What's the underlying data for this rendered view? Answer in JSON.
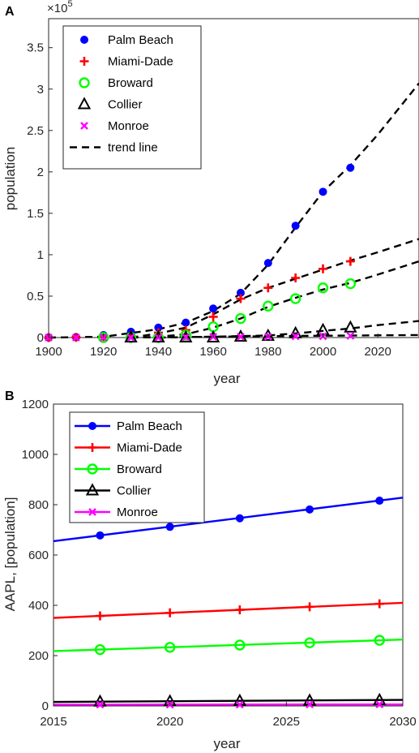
{
  "chart_data": [
    {
      "panel_label": "A",
      "type": "scatter",
      "xlabel": "year",
      "ylabel": "population",
      "y_multiplier": "×10",
      "y_multiplier_exp": "5",
      "xlim": [
        1900,
        2035
      ],
      "ylim": [
        0,
        3.85
      ],
      "xticks": [
        1900,
        1920,
        1940,
        1960,
        1980,
        2000,
        2020
      ],
      "yticks": [
        0,
        0.5,
        1,
        1.5,
        2,
        2.5,
        3,
        3.5
      ],
      "ytick_labels": [
        "0",
        "0.5",
        "1",
        "1.5",
        "2",
        "2.5",
        "3",
        "3.5"
      ],
      "legend_position": "top-left",
      "legend": [
        "Palm Beach",
        "Miami-Dade",
        "Broward",
        "Collier",
        "Monroe",
        "trend line"
      ],
      "series": [
        {
          "name": "Palm Beach",
          "color": "#0000ff",
          "marker": "dot",
          "x": [
            1900,
            1910,
            1920,
            1930,
            1940,
            1950,
            1960,
            1970,
            1980,
            1990,
            2000,
            2010
          ],
          "y": [
            0,
            0.005,
            0.03,
            0.07,
            0.12,
            0.18,
            0.35,
            0.54,
            0.9,
            1.35,
            1.76,
            2.05
          ]
        },
        {
          "name": "Miami-Dade",
          "color": "#ff0000",
          "marker": "plus",
          "x": [
            1900,
            1910,
            1920,
            1930,
            1940,
            1950,
            1960,
            1970,
            1980,
            1990,
            2000,
            2010
          ],
          "y": [
            0,
            0.003,
            0.01,
            0.03,
            0.06,
            0.09,
            0.25,
            0.47,
            0.6,
            0.72,
            0.83,
            0.92
          ]
        },
        {
          "name": "Broward",
          "color": "#00ff00",
          "marker": "circle",
          "x": [
            1920,
            1930,
            1940,
            1950,
            1960,
            1970,
            1980,
            1990,
            2000,
            2010
          ],
          "y": [
            0.0,
            0.0,
            0.0,
            0.03,
            0.13,
            0.23,
            0.38,
            0.47,
            0.6,
            0.65
          ]
        },
        {
          "name": "Collier",
          "color": "#000000",
          "marker": "triangle",
          "x": [
            1930,
            1940,
            1950,
            1960,
            1970,
            1980,
            1990,
            2000,
            2010
          ],
          "y": [
            0.0,
            0.0,
            0.0,
            0.0,
            0.01,
            0.02,
            0.05,
            0.09,
            0.12
          ]
        },
        {
          "name": "Monroe",
          "color": "#ff00ff",
          "marker": "x",
          "x": [
            1900,
            1910,
            1920,
            1930,
            1940,
            1950,
            1960,
            1970,
            1980,
            1990,
            2000,
            2010
          ],
          "y": [
            0,
            0,
            0,
            0,
            0,
            0.005,
            0.01,
            0.01,
            0.01,
            0.015,
            0.015,
            0.02
          ]
        }
      ],
      "trend_lines": [
        {
          "name": "Palm Beach",
          "x": [
            1900,
            1920,
            1940,
            1950,
            1960,
            1970,
            1980,
            1990,
            2000,
            2010,
            2020,
            2035
          ],
          "y": [
            0,
            0.01,
            0.1,
            0.18,
            0.32,
            0.53,
            0.88,
            1.33,
            1.76,
            2.08,
            2.45,
            3.07
          ]
        },
        {
          "name": "Miami-Dade",
          "x": [
            1930,
            1940,
            1950,
            1960,
            1970,
            1980,
            1990,
            2000,
            2010,
            2020,
            2035
          ],
          "y": [
            0,
            0.05,
            0.12,
            0.28,
            0.46,
            0.6,
            0.71,
            0.82,
            0.93,
            1.03,
            1.19
          ]
        },
        {
          "name": "Broward",
          "x": [
            1930,
            1940,
            1950,
            1960,
            1970,
            1980,
            1990,
            2000,
            2010,
            2020,
            2035
          ],
          "y": [
            0,
            0.01,
            0.04,
            0.12,
            0.23,
            0.37,
            0.48,
            0.58,
            0.66,
            0.76,
            0.92
          ]
        },
        {
          "name": "Collier",
          "x": [
            1940,
            1960,
            1980,
            1990,
            2000,
            2010,
            2020,
            2035
          ],
          "y": [
            0,
            0.01,
            0.025,
            0.05,
            0.08,
            0.11,
            0.15,
            0.2
          ]
        },
        {
          "name": "Monroe",
          "x": [
            1930,
            1960,
            1990,
            2035
          ],
          "y": [
            0,
            0.01,
            0.02,
            0.03
          ]
        }
      ]
    },
    {
      "panel_label": "B",
      "type": "line",
      "xlabel": "year",
      "ylabel": "AAPL, [population]",
      "xlim": [
        2015,
        2030
      ],
      "ylim": [
        0,
        1200
      ],
      "xticks": [
        2015,
        2020,
        2025,
        2030
      ],
      "yticks": [
        0,
        200,
        400,
        600,
        800,
        1000,
        1200
      ],
      "legend_position": "top-left",
      "legend": [
        "Palm Beach",
        "Miami-Dade",
        "Broward",
        "Collier",
        "Monroe"
      ],
      "series": [
        {
          "name": "Palm Beach",
          "color": "#0000ff",
          "marker": "dot",
          "line": [
            [
              2015,
              655
            ],
            [
              2030,
              828
            ]
          ],
          "markers_x": [
            2017,
            2020,
            2023,
            2026,
            2029
          ],
          "markers_y": [
            678,
            712,
            746,
            781,
            816
          ]
        },
        {
          "name": "Miami-Dade",
          "color": "#ff0000",
          "marker": "plus",
          "line": [
            [
              2015,
              350
            ],
            [
              2030,
              410
            ]
          ],
          "markers_x": [
            2017,
            2020,
            2023,
            2026,
            2029
          ],
          "markers_y": [
            358,
            370,
            382,
            394,
            406
          ]
        },
        {
          "name": "Broward",
          "color": "#00ff00",
          "marker": "circle",
          "line": [
            [
              2015,
              218
            ],
            [
              2030,
              264
            ]
          ],
          "markers_x": [
            2017,
            2020,
            2023,
            2026,
            2029
          ],
          "markers_y": [
            224,
            233,
            242,
            251,
            261
          ]
        },
        {
          "name": "Collier",
          "color": "#000000",
          "marker": "triangle",
          "line": [
            [
              2015,
              16
            ],
            [
              2030,
              24
            ]
          ],
          "markers_x": [
            2017,
            2020,
            2023,
            2026,
            2029
          ],
          "markers_y": [
            17,
            18,
            20,
            21,
            23
          ]
        },
        {
          "name": "Monroe",
          "color": "#ff00ff",
          "marker": "x",
          "line": [
            [
              2015,
              5
            ],
            [
              2030,
              6
            ]
          ],
          "markers_x": [
            2017,
            2020,
            2023,
            2026,
            2029
          ],
          "markers_y": [
            5,
            5,
            5,
            6,
            6
          ]
        }
      ]
    }
  ]
}
